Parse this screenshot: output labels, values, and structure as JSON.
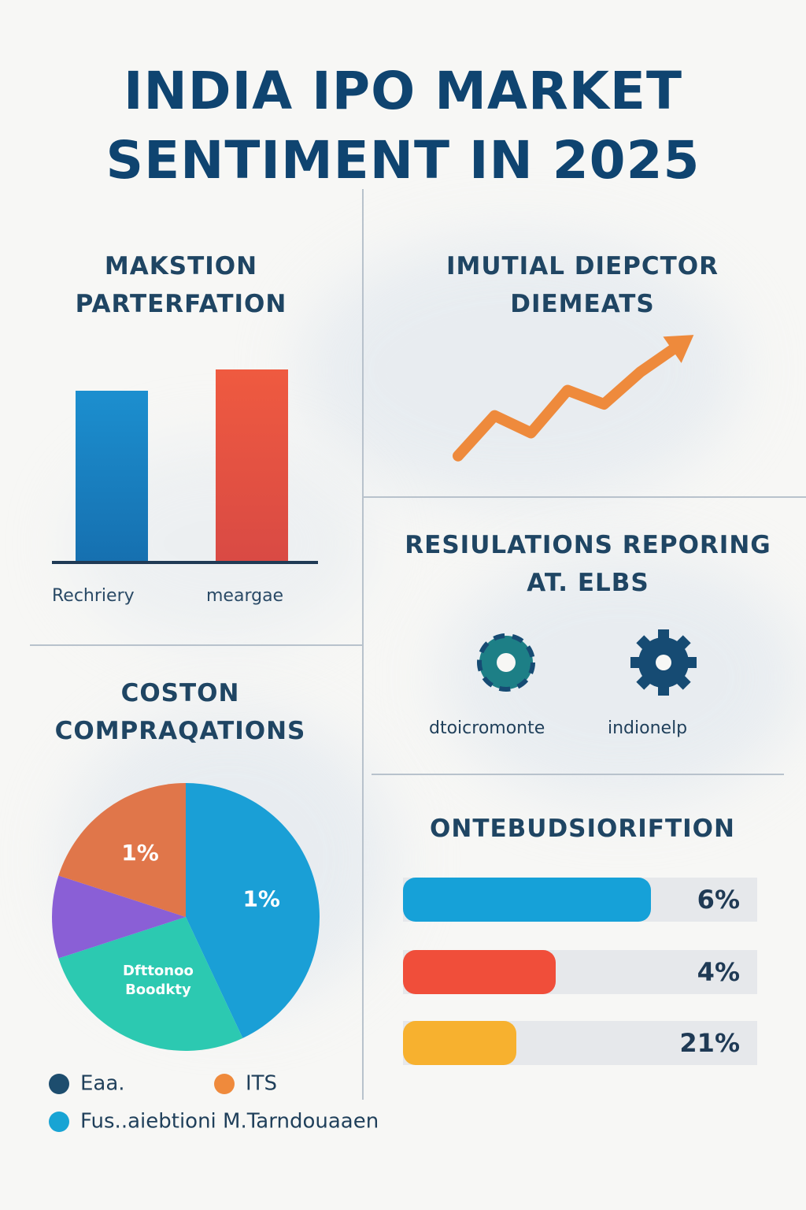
{
  "title_lines": [
    "INDIA IPO MARKET",
    "SENTIMENT IN 2025"
  ],
  "panels": {
    "bar": {
      "title_lines": [
        "MAKSTION",
        "PARTERFATION"
      ]
    },
    "trend": {
      "title_lines": [
        "IMUTIAL DIEPCTOR",
        "DIEMEATS"
      ]
    },
    "regulations": {
      "title_lines": [
        "RESIULATIONS REPORING",
        "AT. ELBS"
      ],
      "items": [
        {
          "label": "dtoicromonte",
          "icon": "gear-icon",
          "color": "#1d7f86"
        },
        {
          "label": "indionelp",
          "icon": "gear-icon",
          "color": "#164b73"
        }
      ]
    },
    "pie": {
      "title_lines": [
        "COSTON",
        "COMPRAQATIONS"
      ],
      "legend": [
        {
          "label": "Eaa.",
          "color": "#1d4d6e"
        },
        {
          "label": "ITS",
          "color": "#ef8a3c"
        },
        {
          "label": "Fus..aiebtioni M.Tarndouaaen",
          "color": "#18a4d4"
        }
      ]
    },
    "distribution": {
      "title": "ONTEBUDSIORIFTION"
    }
  },
  "chart_data": [
    {
      "type": "bar",
      "categories": [
        "Rechriery",
        "meargae"
      ],
      "values": [
        0.72,
        0.81
      ],
      "colors": [
        "#1c8fcf",
        "#ef5a40"
      ],
      "ylim": [
        0,
        1
      ],
      "grid": false
    },
    {
      "type": "line",
      "x": [
        0,
        1,
        2,
        3,
        4,
        5,
        6
      ],
      "values": [
        0.05,
        0.4,
        0.25,
        0.62,
        0.5,
        0.78,
        1.0
      ],
      "color": "#ee8a3c",
      "arrow_end": true,
      "grid": false
    },
    {
      "type": "pie",
      "labels": [
        "1%",
        "Dfttonoo Boodkty",
        "",
        "1%"
      ],
      "values": [
        43,
        27,
        10,
        20
      ],
      "colors": [
        "#1a9fd6",
        "#2cc9b1",
        "#8a5fd6",
        "#e0764a"
      ]
    },
    {
      "type": "bar",
      "orientation": "horizontal",
      "labels": [
        "6%",
        "4%",
        "21%"
      ],
      "values": [
        0.7,
        0.43,
        0.32
      ],
      "colors": [
        "#16a1d8",
        "#f04e3a",
        "#f7b12f"
      ]
    }
  ]
}
